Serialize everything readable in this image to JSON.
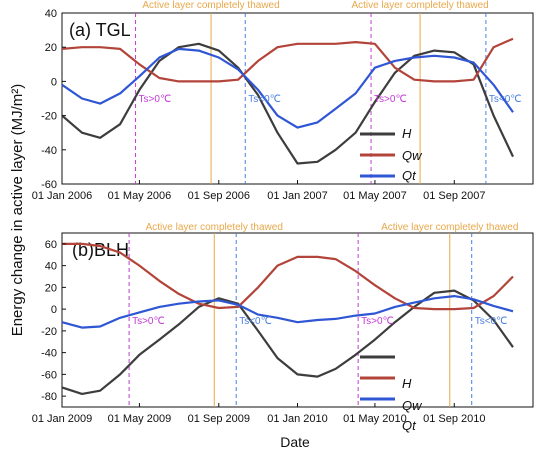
{
  "figure": {
    "ylabel": "Energy change in active layer (MJ/m²)",
    "xlabel": "Date"
  },
  "chart_data": [
    {
      "type": "line",
      "title": "(a) TGL",
      "xlabel": "Date",
      "ylabel": "Energy change in active layer (MJ/m²)",
      "ylim": [
        -60,
        40
      ],
      "yticks": [
        -60,
        -40,
        -20,
        0,
        20,
        40
      ],
      "x_tick_labels": [
        "01 Jan 2006",
        "01 May 2006",
        "01 Sep 2006",
        "01 Jan 2007",
        "01 May 2007",
        "01 Sep 2007"
      ],
      "legend": [
        "H",
        "Qw",
        "Qt"
      ],
      "legend_position": "bottom-right",
      "grid": false,
      "colors": {
        "H": "#3d3d3d",
        "Qw": "#b3443a",
        "Qt": "#2f56d4"
      },
      "annotations": [
        {
          "text": "Active layer completely thawed",
          "color": "#e8a84a"
        },
        {
          "text": "Active layer completely thawed",
          "color": "#e8a84a"
        },
        {
          "text": "Ts>0℃",
          "color": "#c23ad4"
        },
        {
          "text": "Ts<0℃",
          "color": "#4a7fe0"
        },
        {
          "text": "Ts>0℃",
          "color": "#c23ad4"
        },
        {
          "text": "Ts<0℃",
          "color": "#4a7fe0"
        }
      ],
      "series": [
        {
          "name": "H",
          "x": [
            "2006-01-01",
            "2006-02-01",
            "2006-03-01",
            "2006-04-01",
            "2006-05-01",
            "2006-06-01",
            "2006-07-01",
            "2006-08-01",
            "2006-09-01",
            "2006-10-01",
            "2006-11-01",
            "2006-12-01",
            "2007-01-01",
            "2007-02-01",
            "2007-03-01",
            "2007-04-01",
            "2007-05-01",
            "2007-06-01",
            "2007-07-01",
            "2007-08-01",
            "2007-09-01",
            "2007-10-01",
            "2007-11-01",
            "2007-12-01"
          ],
          "values": [
            -20,
            -30,
            -33,
            -25,
            -5,
            12,
            20,
            22,
            18,
            8,
            -8,
            -30,
            -48,
            -47,
            -40,
            -30,
            -12,
            5,
            15,
            18,
            17,
            10,
            -20,
            -44
          ]
        },
        {
          "name": "Qw",
          "x": [
            "2006-01-01",
            "2006-02-01",
            "2006-03-01",
            "2006-04-01",
            "2006-05-01",
            "2006-06-01",
            "2006-07-01",
            "2006-08-01",
            "2006-09-01",
            "2006-10-01",
            "2006-11-01",
            "2006-12-01",
            "2007-01-01",
            "2007-02-01",
            "2007-03-01",
            "2007-04-01",
            "2007-05-01",
            "2007-06-01",
            "2007-07-01",
            "2007-08-01",
            "2007-09-01",
            "2007-10-01",
            "2007-11-01",
            "2007-12-01"
          ],
          "values": [
            19,
            20,
            20,
            19,
            10,
            2,
            0,
            0,
            0,
            1,
            12,
            20,
            22,
            22,
            22,
            23,
            22,
            8,
            1,
            0,
            0,
            1,
            20,
            25
          ]
        },
        {
          "name": "Qt",
          "x": [
            "2006-01-01",
            "2006-02-01",
            "2006-03-01",
            "2006-04-01",
            "2006-05-01",
            "2006-06-01",
            "2006-07-01",
            "2006-08-01",
            "2006-09-01",
            "2006-10-01",
            "2006-11-01",
            "2006-12-01",
            "2007-01-01",
            "2007-02-01",
            "2007-03-01",
            "2007-04-01",
            "2007-05-01",
            "2007-06-01",
            "2007-07-01",
            "2007-08-01",
            "2007-09-01",
            "2007-10-01",
            "2007-11-01",
            "2007-12-01"
          ],
          "values": [
            -2,
            -10,
            -13,
            -7,
            3,
            14,
            19,
            18,
            14,
            7,
            -5,
            -20,
            -27,
            -24,
            -16,
            -7,
            8,
            12,
            14,
            15,
            14,
            11,
            -2,
            -18
          ]
        }
      ]
    },
    {
      "type": "line",
      "title": "(b)BLH",
      "xlabel": "Date",
      "ylabel": "Energy change in active layer (MJ/m²)",
      "ylim": [
        -90,
        70
      ],
      "yticks": [
        -80,
        -60,
        -40,
        -20,
        0,
        20,
        40,
        60
      ],
      "x_tick_labels": [
        "01 Jan 2009",
        "01 May 2009",
        "01 Sep 2009",
        "01 Jan 2010",
        "01 May 2010",
        "01 Sep 2010"
      ],
      "legend": [
        "H",
        "Qw",
        "Qt"
      ],
      "legend_position": "bottom-right",
      "grid": false,
      "colors": {
        "H": "#3d3d3d",
        "Qw": "#b3443a",
        "Qt": "#2f56d4"
      },
      "annotations": [
        {
          "text": "Active layer completely thawed",
          "color": "#e8a84a"
        },
        {
          "text": "Active layer completely thawed",
          "color": "#e8a84a"
        },
        {
          "text": "Ts>0℃",
          "color": "#c23ad4"
        },
        {
          "text": "Ts<0℃",
          "color": "#4a7fe0"
        },
        {
          "text": "Ts>0℃",
          "color": "#c23ad4"
        },
        {
          "text": "Ts<0℃",
          "color": "#4a7fe0"
        }
      ],
      "series": [
        {
          "name": "H",
          "x": [
            "2009-01-01",
            "2009-02-01",
            "2009-03-01",
            "2009-04-01",
            "2009-05-01",
            "2009-06-01",
            "2009-07-01",
            "2009-08-01",
            "2009-09-01",
            "2009-10-01",
            "2009-11-01",
            "2009-12-01",
            "2010-01-01",
            "2010-02-01",
            "2010-03-01",
            "2010-04-01",
            "2010-05-01",
            "2010-06-01",
            "2010-07-01",
            "2010-08-01",
            "2010-09-01",
            "2010-10-01",
            "2010-11-01",
            "2010-12-01"
          ],
          "values": [
            -72,
            -78,
            -75,
            -60,
            -42,
            -28,
            -14,
            2,
            10,
            5,
            -20,
            -45,
            -60,
            -62,
            -55,
            -42,
            -28,
            -12,
            2,
            15,
            17,
            8,
            -10,
            -35
          ]
        },
        {
          "name": "Qw",
          "x": [
            "2009-01-01",
            "2009-02-01",
            "2009-03-01",
            "2009-04-01",
            "2009-05-01",
            "2009-06-01",
            "2009-07-01",
            "2009-08-01",
            "2009-09-01",
            "2009-10-01",
            "2009-11-01",
            "2009-12-01",
            "2010-01-01",
            "2010-02-01",
            "2010-03-01",
            "2010-04-01",
            "2010-05-01",
            "2010-06-01",
            "2010-07-01",
            "2010-08-01",
            "2010-09-01",
            "2010-10-01",
            "2010-11-01",
            "2010-12-01"
          ],
          "values": [
            60,
            60,
            58,
            52,
            40,
            26,
            14,
            5,
            1,
            2,
            20,
            40,
            48,
            48,
            46,
            35,
            22,
            10,
            1,
            0,
            0,
            1,
            12,
            30
          ]
        },
        {
          "name": "Qt",
          "x": [
            "2009-01-01",
            "2009-02-01",
            "2009-03-01",
            "2009-04-01",
            "2009-05-01",
            "2009-06-01",
            "2009-07-01",
            "2009-08-01",
            "2009-09-01",
            "2009-10-01",
            "2009-11-01",
            "2009-12-01",
            "2010-01-01",
            "2010-02-01",
            "2010-03-01",
            "2010-04-01",
            "2010-05-01",
            "2010-06-01",
            "2010-07-01",
            "2010-08-01",
            "2010-09-01",
            "2010-10-01",
            "2010-11-01",
            "2010-12-01"
          ],
          "values": [
            -12,
            -17,
            -16,
            -8,
            -3,
            2,
            5,
            7,
            8,
            4,
            -5,
            -8,
            -12,
            -10,
            -9,
            -6,
            -4,
            2,
            6,
            10,
            12,
            9,
            3,
            -2
          ]
        }
      ]
    }
  ]
}
